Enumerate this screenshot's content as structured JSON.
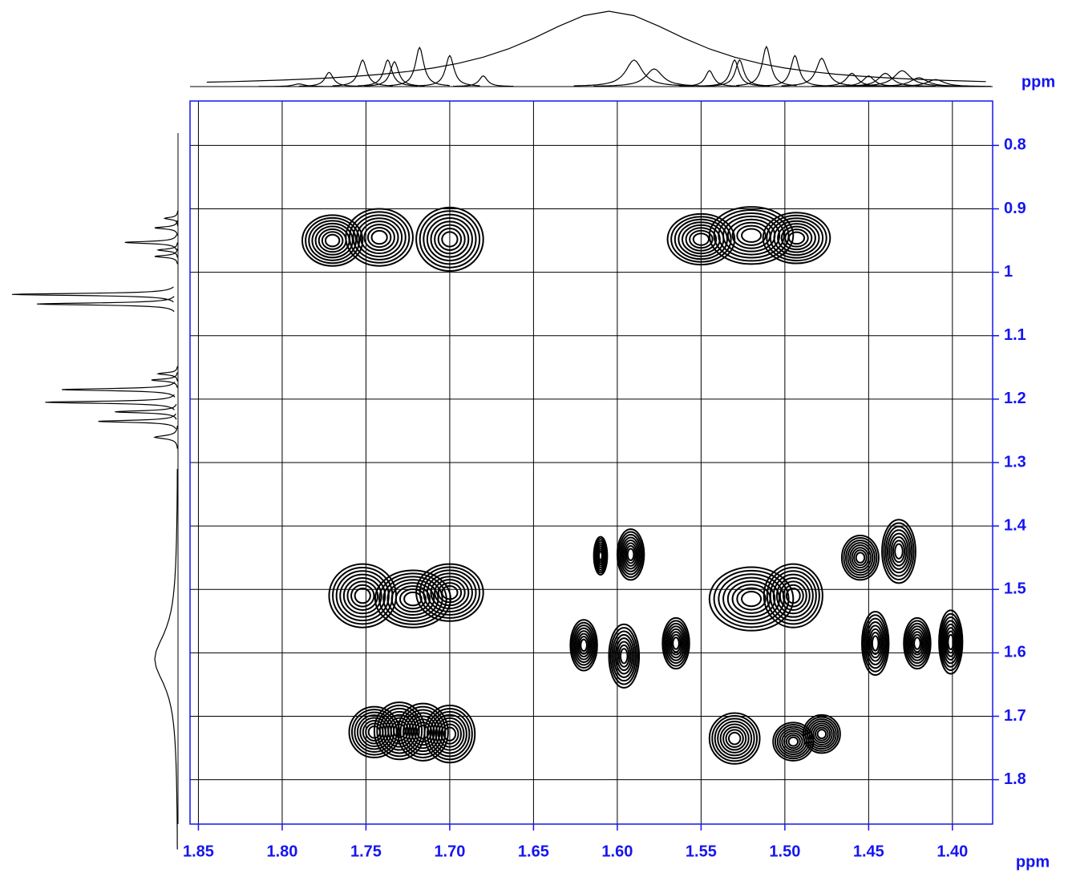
{
  "chart_data": {
    "type": "contour",
    "x_label": "ppm",
    "y_label": "ppm",
    "xlim": [
      1.855,
      1.376
    ],
    "ylim": [
      0.73,
      1.87
    ],
    "xticks": [
      1.85,
      {
        "value": 1.8,
        "label": "1.80"
      },
      1.75,
      {
        "value": 1.7,
        "label": "1.70"
      },
      1.65,
      {
        "value": 1.6,
        "label": "1.60"
      },
      1.55,
      {
        "value": 1.5,
        "label": "1.50"
      },
      1.45,
      {
        "value": 1.4,
        "label": "1.40"
      }
    ],
    "yticks": [
      0.8,
      0.9,
      1.0,
      1.1,
      1.2,
      1.3,
      1.4,
      1.5,
      1.6,
      1.7,
      1.8
    ],
    "grid": true,
    "axis_color": "#1515f0",
    "contour_color": "#000000",
    "peaks": {
      "x": [
        1.77,
        1.742,
        1.7,
        1.55,
        1.52,
        1.493,
        1.752,
        1.722,
        1.7,
        1.52,
        1.495,
        1.61,
        1.592,
        1.455,
        1.432,
        1.62,
        1.596,
        1.565,
        1.446,
        1.421,
        1.401,
        1.745,
        1.73,
        1.716,
        1.7,
        1.53,
        1.495,
        1.478
      ],
      "y": [
        0.95,
        0.945,
        0.948,
        0.948,
        0.942,
        0.946,
        1.51,
        1.515,
        1.505,
        1.515,
        1.51,
        1.447,
        1.445,
        1.45,
        1.44,
        1.588,
        1.605,
        1.585,
        1.585,
        1.585,
        1.583,
        1.725,
        1.723,
        1.725,
        1.728,
        1.735,
        1.74,
        1.728
      ],
      "x_widths": [
        0.036,
        0.04,
        0.04,
        0.04,
        0.05,
        0.04,
        0.04,
        0.045,
        0.04,
        0.05,
        0.035,
        0.008,
        0.016,
        0.022,
        0.02,
        0.016,
        0.018,
        0.016,
        0.016,
        0.016,
        0.014,
        0.03,
        0.03,
        0.03,
        0.03,
        0.03,
        0.024,
        0.022
      ],
      "y_widths": [
        0.08,
        0.09,
        0.1,
        0.08,
        0.09,
        0.08,
        0.1,
        0.09,
        0.09,
        0.1,
        0.1,
        0.06,
        0.08,
        0.07,
        0.1,
        0.08,
        0.1,
        0.08,
        0.1,
        0.08,
        0.1,
        0.08,
        0.09,
        0.09,
        0.09,
        0.08,
        0.06,
        0.06
      ]
    },
    "top_trace": {
      "x": [
        1.79,
        1.772,
        1.752,
        1.737,
        1.733,
        1.718,
        1.7,
        1.68,
        1.605,
        1.59,
        1.578,
        1.545,
        1.53,
        1.527,
        1.511,
        1.494,
        1.478,
        1.46,
        1.45,
        1.44,
        1.43,
        1.42,
        1.41
      ],
      "values": [
        3,
        16,
        30,
        30,
        28,
        44,
        35,
        12,
        85,
        30,
        20,
        18,
        30,
        30,
        45,
        35,
        32,
        15,
        12,
        15,
        18,
        10,
        8
      ],
      "widths": [
        0.004,
        0.003,
        0.003,
        0.003,
        0.003,
        0.003,
        0.003,
        0.003,
        0.06,
        0.006,
        0.006,
        0.003,
        0.003,
        0.003,
        0.003,
        0.003,
        0.004,
        0.004,
        0.004,
        0.005,
        0.006,
        0.006,
        0.006
      ]
    },
    "left_trace": {
      "x": [
        0.915,
        0.93,
        0.953,
        0.965,
        0.975,
        1.035,
        1.05,
        1.16,
        1.17,
        1.185,
        1.205,
        1.22,
        1.235,
        1.26,
        1.61
      ],
      "values": [
        8,
        14,
        32,
        12,
        14,
        100,
        85,
        12,
        16,
        70,
        80,
        38,
        48,
        14,
        14
      ],
      "widths": [
        0.002,
        0.002,
        0.002,
        0.002,
        0.002,
        0.002,
        0.002,
        0.002,
        0.002,
        0.002,
        0.002,
        0.002,
        0.002,
        0.003,
        0.05
      ]
    }
  }
}
